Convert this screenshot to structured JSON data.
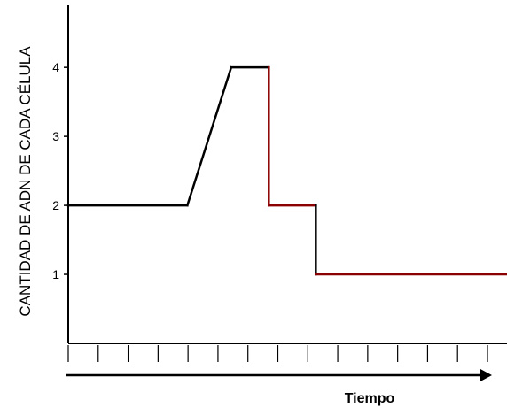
{
  "chart_data": {
    "type": "line",
    "title": "",
    "xlabel": "Tiempo",
    "ylabel": "CANTIDAD DE ADN DE CADA CÉLULA",
    "ylim": [
      0,
      4.9
    ],
    "xlim": [
      0,
      14
    ],
    "y_ticks": [
      "1",
      "2",
      "3",
      "4"
    ],
    "x_tick_count": 14,
    "grid": false,
    "legend": "none",
    "series": [
      {
        "x": [
          0,
          3.8,
          5.2,
          6.4,
          6.4,
          7.9,
          7.9,
          14
        ],
        "y": [
          2,
          2,
          4,
          4,
          2,
          2,
          1,
          1
        ],
        "colors": [
          "#000000",
          "#000000",
          "#000000",
          "#8b0000",
          "#8b0000",
          "#000000",
          "#8b0000"
        ]
      }
    ]
  }
}
